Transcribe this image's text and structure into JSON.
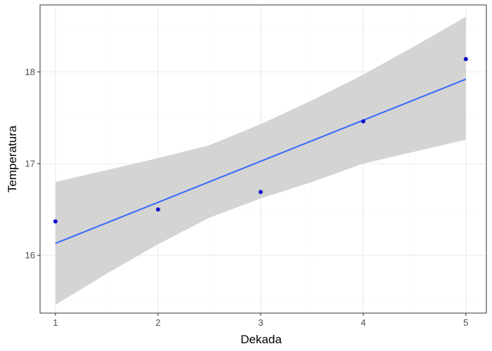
{
  "chart_data": {
    "type": "scatter",
    "xlabel": "Dekada",
    "ylabel": "Temperatura",
    "xlim": [
      0.85,
      5.2
    ],
    "ylim": [
      15.37,
      18.73
    ],
    "x_ticks": [
      1,
      2,
      3,
      4,
      5
    ],
    "y_ticks": [
      16,
      17,
      18
    ],
    "grid": true,
    "series": [
      {
        "points": [
          {
            "x": 1,
            "y": 16.37
          },
          {
            "x": 2,
            "y": 16.5
          },
          {
            "x": 3,
            "y": 16.69
          },
          {
            "x": 4,
            "y": 17.46
          },
          {
            "x": 5,
            "y": 18.14
          }
        ]
      }
    ],
    "trend": {
      "method": "linear",
      "fit": [
        {
          "x": 1,
          "y": 16.13
        },
        {
          "x": 5,
          "y": 17.92
        }
      ],
      "confidence_band": [
        {
          "x": 1,
          "lower": 15.46,
          "upper": 16.8
        },
        {
          "x": 1.5,
          "lower": 15.8,
          "upper": 16.93
        },
        {
          "x": 2,
          "lower": 16.12,
          "upper": 17.06
        },
        {
          "x": 2.5,
          "lower": 16.41,
          "upper": 17.2
        },
        {
          "x": 3,
          "lower": 16.62,
          "upper": 17.43
        },
        {
          "x": 3.5,
          "lower": 16.8,
          "upper": 17.69
        },
        {
          "x": 4,
          "lower": 17.0,
          "upper": 17.97
        },
        {
          "x": 4.5,
          "lower": 17.13,
          "upper": 18.28
        },
        {
          "x": 5,
          "lower": 17.26,
          "upper": 18.6
        }
      ]
    },
    "colors": {
      "points": "#1010cc",
      "fit_line": "#3366ff",
      "band": "#d4d4d4",
      "grid_major": "#ebebeb",
      "grid_minor": "#f5f5f5",
      "panel_border": "#333333"
    }
  }
}
